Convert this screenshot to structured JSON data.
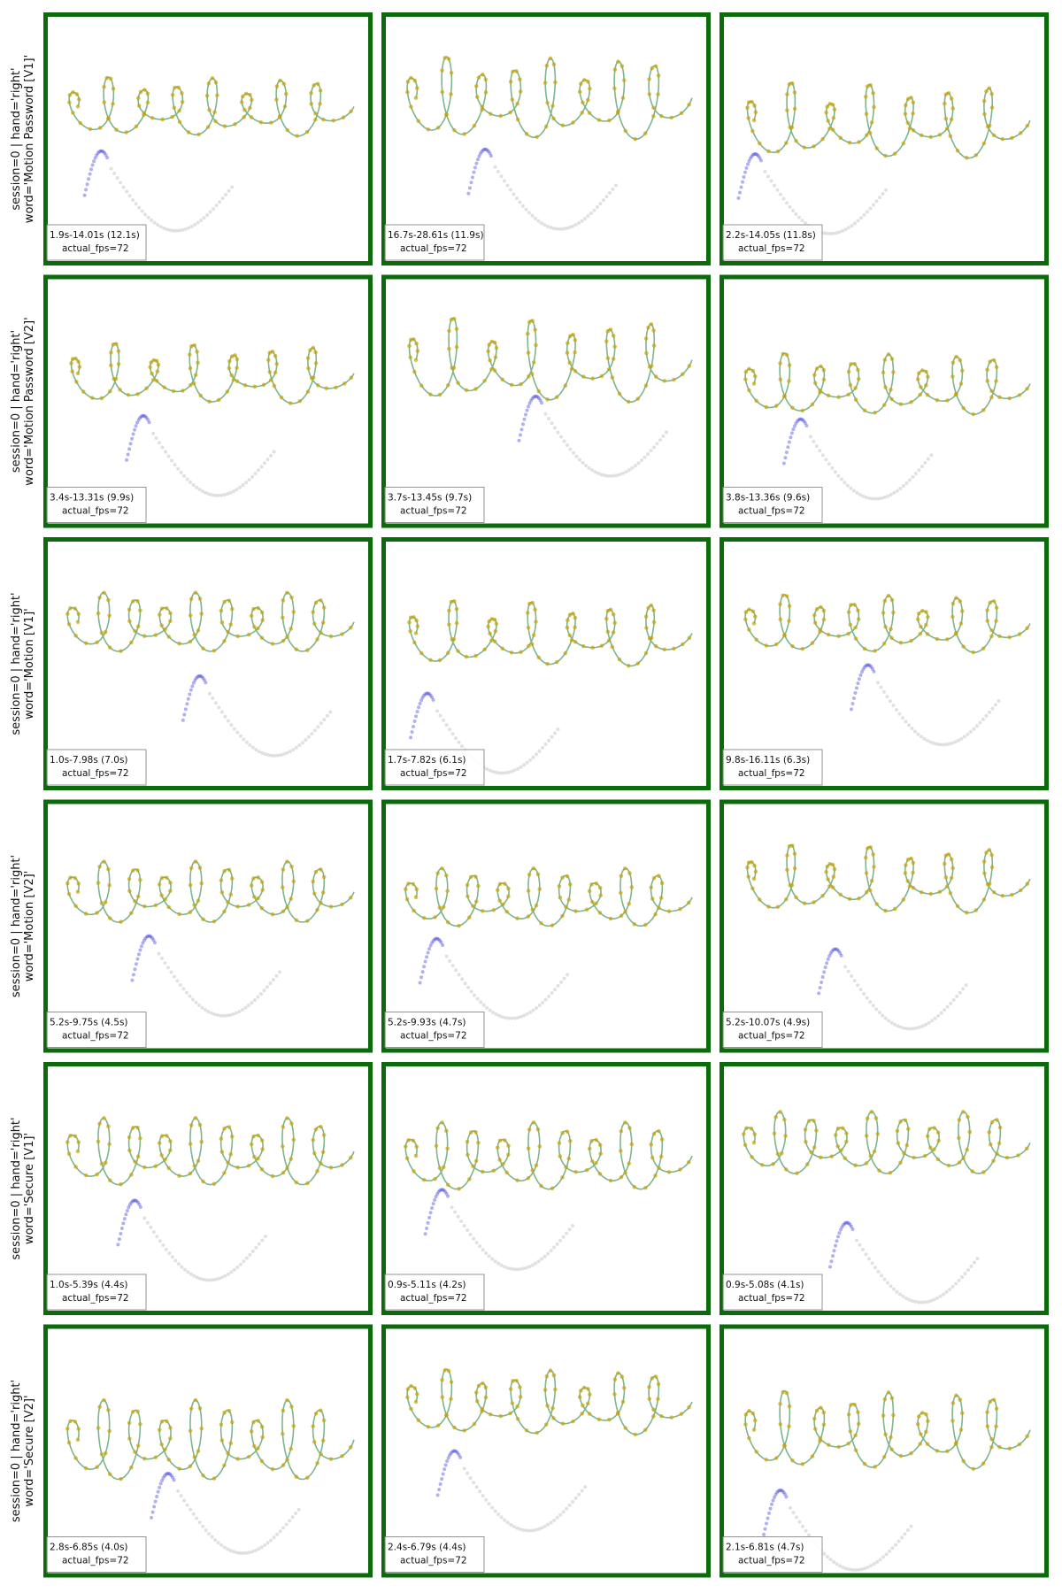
{
  "rows": [
    {
      "label": [
        "session=0 | hand='right'",
        "word='Motion Password [V1]'"
      ],
      "panels": [
        {
          "time": "1.9s-14.01s (12.1s)",
          "fps": "actual_fps=72"
        },
        {
          "time": "16.7s-28.61s (11.9s)",
          "fps": "actual_fps=72"
        },
        {
          "time": "2.2s-14.05s (11.8s)",
          "fps": "actual_fps=72"
        }
      ]
    },
    {
      "label": [
        "session=0 | hand='right'",
        "word='Motion Password [V2]'"
      ],
      "panels": [
        {
          "time": "3.4s-13.31s (9.9s)",
          "fps": "actual_fps=72"
        },
        {
          "time": "3.7s-13.45s (9.7s)",
          "fps": "actual_fps=72"
        },
        {
          "time": "3.8s-13.36s (9.6s)",
          "fps": "actual_fps=72"
        }
      ]
    },
    {
      "label": [
        "session=0 | hand='right'",
        "word='Motion [V1]'"
      ],
      "panels": [
        {
          "time": "1.0s-7.98s (7.0s)",
          "fps": "actual_fps=72"
        },
        {
          "time": "1.7s-7.82s (6.1s)",
          "fps": "actual_fps=72"
        },
        {
          "time": "9.8s-16.11s (6.3s)",
          "fps": "actual_fps=72"
        }
      ]
    },
    {
      "label": [
        "session=0 | hand='right'",
        "word='Motion [V2]'"
      ],
      "panels": [
        {
          "time": "5.2s-9.75s (4.5s)",
          "fps": "actual_fps=72"
        },
        {
          "time": "5.2s-9.93s (4.7s)",
          "fps": "actual_fps=72"
        },
        {
          "time": "5.2s-10.07s (4.9s)",
          "fps": "actual_fps=72"
        }
      ]
    },
    {
      "label": [
        "session=0 | hand='right'",
        "word='Secure [V1]'"
      ],
      "panels": [
        {
          "time": "1.0s-5.39s (4.4s)",
          "fps": "actual_fps=72"
        },
        {
          "time": "0.9s-5.11s (4.2s)",
          "fps": "actual_fps=72"
        },
        {
          "time": "0.9s-5.08s (4.1s)",
          "fps": "actual_fps=72"
        }
      ]
    },
    {
      "label": [
        "session=0 | hand='right'",
        "word='Secure [V2]'"
      ],
      "panels": [
        {
          "time": "2.8s-6.85s (4.0s)",
          "fps": "actual_fps=72"
        },
        {
          "time": "2.4s-6.79s (4.4s)",
          "fps": "actual_fps=72"
        },
        {
          "time": "2.1s-6.81s (4.7s)",
          "fps": "actual_fps=72"
        }
      ]
    }
  ]
}
